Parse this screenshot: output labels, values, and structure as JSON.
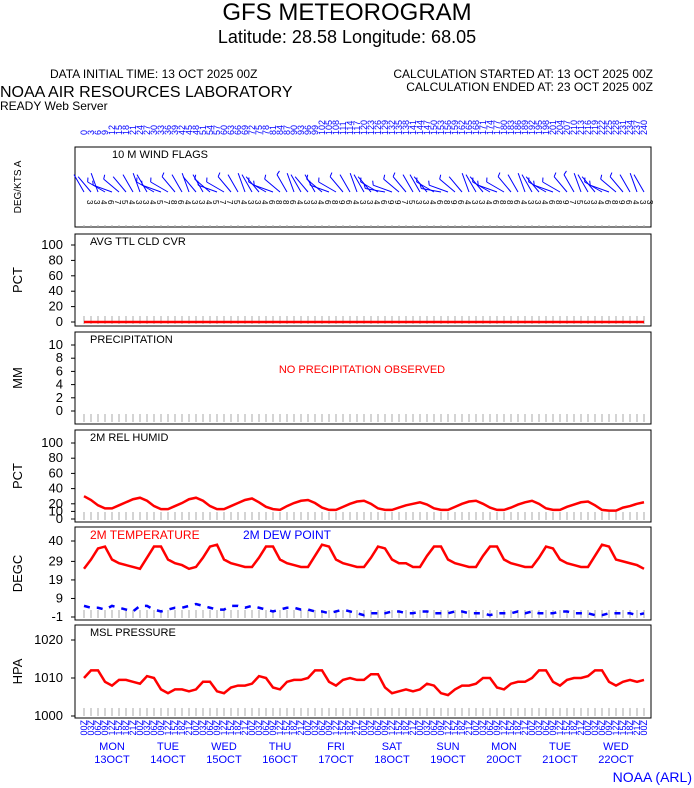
{
  "header": {
    "title": "GFS METEOROGRAM",
    "subtitle": "Latitude: 28.58 Longitude:  68.05",
    "initial_time": "DATA INITIAL TIME: 13 OCT 2025 00Z",
    "calc_started": "CALCULATION STARTED AT: 13 OCT 2025 00Z",
    "calc_ended": "CALCULATION ENDED AT: 23 OCT 2025 00Z",
    "lab": "NOAA AIR RESOURCES LABORATORY",
    "server": "READY Web Server",
    "footer": "NOAA (ARL)"
  },
  "chart_data": [
    {
      "type": "wind_barbs",
      "title": "10 M  WIND FLAGS",
      "ylabel": "DEG/KTS  A",
      "color": "#0000ff",
      "x": [
        0,
        3,
        6,
        9,
        12,
        15,
        18,
        21,
        24,
        27,
        30,
        33,
        36,
        39,
        42,
        45,
        48,
        51,
        54,
        57,
        60,
        63,
        66,
        69,
        72,
        75,
        78,
        81,
        84,
        87,
        90,
        93,
        96,
        99,
        102,
        105,
        108,
        111,
        114,
        117,
        120,
        123,
        126,
        129,
        132,
        135,
        138,
        141,
        144,
        147,
        150,
        153,
        156,
        159,
        162,
        165,
        168,
        171,
        174,
        177,
        180,
        183,
        186,
        189,
        192,
        195,
        198,
        201,
        204,
        207,
        210,
        213,
        216,
        219,
        222,
        225,
        228,
        231,
        234,
        237,
        240
      ],
      "directions": [
        330,
        320,
        340,
        300,
        290,
        310,
        320,
        330,
        340,
        330,
        300,
        290,
        300,
        320,
        330,
        340,
        320,
        330,
        310,
        290,
        300,
        320,
        330,
        340,
        330,
        320,
        300,
        290,
        310,
        330,
        340,
        330,
        320,
        330,
        310,
        290,
        300,
        320,
        330,
        340,
        330,
        320,
        300,
        280,
        290,
        310,
        320,
        330,
        330,
        320,
        300,
        280,
        290,
        310,
        320,
        340,
        330,
        320,
        300,
        290,
        300,
        320,
        330,
        340,
        330,
        320,
        300,
        290,
        300,
        320,
        330,
        340,
        330,
        320,
        300,
        290,
        310,
        320,
        330,
        340,
        330
      ],
      "speeds": [
        3,
        3,
        4,
        6,
        7,
        5,
        4,
        3,
        3,
        4,
        5,
        7,
        8,
        6,
        4,
        3,
        3,
        4,
        5,
        7,
        7,
        5,
        4,
        3,
        3,
        4,
        6,
        8,
        8,
        6,
        4,
        3,
        3,
        4,
        6,
        8,
        9,
        6,
        4,
        3,
        3,
        4,
        6,
        9,
        9,
        7,
        5,
        3,
        3,
        4,
        6,
        8,
        9,
        6,
        4,
        3,
        3,
        4,
        6,
        8,
        8,
        6,
        4,
        3,
        3,
        4,
        6,
        8,
        9,
        7,
        5,
        3,
        3,
        4,
        6,
        8,
        9,
        6,
        4,
        3,
        3
      ]
    },
    {
      "type": "line",
      "title": "AVG TTL CLD CVR",
      "ylabel": "PCT",
      "color": "#ff0000",
      "ylim": [
        0,
        100
      ],
      "yticks": [
        0,
        20,
        40,
        60,
        80,
        100
      ],
      "x": [
        0,
        3,
        6,
        9,
        12,
        15,
        18,
        21,
        24,
        27,
        30,
        33,
        36,
        39,
        42,
        45,
        48,
        51,
        54,
        57,
        60,
        63,
        66,
        69,
        72,
        75,
        78,
        81,
        84,
        87,
        90,
        93,
        96,
        99,
        102,
        105,
        108,
        111,
        114,
        117,
        120,
        123,
        126,
        129,
        132,
        135,
        138,
        141,
        144,
        147,
        150,
        153,
        156,
        159,
        162,
        165,
        168,
        171,
        174,
        177,
        180,
        183,
        186,
        189,
        192,
        195,
        198,
        201,
        204,
        207,
        210,
        213,
        216,
        219,
        222,
        225,
        228,
        231,
        234,
        237,
        240
      ],
      "values": [
        0,
        0,
        0,
        0,
        0,
        0,
        0,
        0,
        0,
        0,
        0,
        0,
        0,
        0,
        0,
        0,
        0,
        0,
        0,
        0,
        0,
        0,
        0,
        0,
        0,
        0,
        0,
        0,
        0,
        0,
        0,
        0,
        0,
        0,
        0,
        0,
        0,
        0,
        0,
        0,
        0,
        0,
        0,
        0,
        0,
        0,
        0,
        0,
        0,
        0,
        0,
        0,
        0,
        0,
        0,
        0,
        0,
        0,
        0,
        0,
        0,
        0,
        0,
        0,
        0,
        0,
        0,
        0,
        0,
        0,
        0,
        0,
        0,
        0,
        0,
        0,
        0,
        0,
        0,
        0,
        0
      ]
    },
    {
      "type": "line",
      "title": "PRECIPITATION",
      "ylabel": "MM",
      "ylim": [
        0,
        10
      ],
      "yticks": [
        0,
        2,
        4,
        6,
        8,
        10
      ],
      "annotation": "NO PRECIPITATION OBSERVED",
      "annotation_color": "#ff0000",
      "x": [
        0,
        3,
        6,
        9,
        12,
        15,
        18,
        21,
        24,
        27,
        30,
        33,
        36,
        39,
        42,
        45,
        48,
        51,
        54,
        57,
        60,
        63,
        66,
        69,
        72,
        75,
        78,
        81,
        84,
        87,
        90,
        93,
        96,
        99,
        102,
        105,
        108,
        111,
        114,
        117,
        120,
        123,
        126,
        129,
        132,
        135,
        138,
        141,
        144,
        147,
        150,
        153,
        156,
        159,
        162,
        165,
        168,
        171,
        174,
        177,
        180,
        183,
        186,
        189,
        192,
        195,
        198,
        201,
        204,
        207,
        210,
        213,
        216,
        219,
        222,
        225,
        228,
        231,
        234,
        237,
        240
      ]
    },
    {
      "type": "line",
      "title": "2M REL HUMID",
      "ylabel": "PCT",
      "color": "#ff0000",
      "ylim": [
        0,
        100
      ],
      "yticks": [
        0,
        10,
        20,
        40,
        60,
        80,
        100
      ],
      "x": [
        0,
        3,
        6,
        9,
        12,
        15,
        18,
        21,
        24,
        27,
        30,
        33,
        36,
        39,
        42,
        45,
        48,
        51,
        54,
        57,
        60,
        63,
        66,
        69,
        72,
        75,
        78,
        81,
        84,
        87,
        90,
        93,
        96,
        99,
        102,
        105,
        108,
        111,
        114,
        117,
        120,
        123,
        126,
        129,
        132,
        135,
        138,
        141,
        144,
        147,
        150,
        153,
        156,
        159,
        162,
        165,
        168,
        171,
        174,
        177,
        180,
        183,
        186,
        189,
        192,
        195,
        198,
        201,
        204,
        207,
        210,
        213,
        216,
        219,
        222,
        225,
        228,
        231,
        234,
        237,
        240
      ],
      "values": [
        30,
        25,
        18,
        14,
        14,
        18,
        22,
        26,
        28,
        24,
        17,
        13,
        13,
        17,
        21,
        26,
        28,
        24,
        17,
        13,
        13,
        17,
        21,
        25,
        27,
        22,
        16,
        13,
        12,
        17,
        21,
        24,
        25,
        21,
        15,
        12,
        12,
        16,
        20,
        23,
        24,
        20,
        14,
        12,
        12,
        15,
        18,
        20,
        22,
        19,
        14,
        12,
        12,
        16,
        20,
        23,
        24,
        20,
        15,
        12,
        12,
        15,
        19,
        22,
        24,
        20,
        14,
        12,
        12,
        16,
        19,
        22,
        23,
        18,
        12,
        11,
        11,
        15,
        17,
        20,
        22
      ]
    },
    {
      "type": "line",
      "ylabel": "DEGC",
      "ylim": [
        -1,
        40
      ],
      "yticks": [
        -1,
        9,
        19,
        29,
        40
      ],
      "x": [
        0,
        3,
        6,
        9,
        12,
        15,
        18,
        21,
        24,
        27,
        30,
        33,
        36,
        39,
        42,
        45,
        48,
        51,
        54,
        57,
        60,
        63,
        66,
        69,
        72,
        75,
        78,
        81,
        84,
        87,
        90,
        93,
        96,
        99,
        102,
        105,
        108,
        111,
        114,
        117,
        120,
        123,
        126,
        129,
        132,
        135,
        138,
        141,
        144,
        147,
        150,
        153,
        156,
        159,
        162,
        165,
        168,
        171,
        174,
        177,
        180,
        183,
        186,
        189,
        192,
        195,
        198,
        201,
        204,
        207,
        210,
        213,
        216,
        219,
        222,
        225,
        228,
        231,
        234,
        237,
        240
      ],
      "series": [
        {
          "name": "2M TEMPERATURE",
          "color": "#ff0000",
          "style": "solid",
          "values": [
            25,
            30,
            36,
            37,
            30,
            28,
            27,
            26,
            25,
            31,
            37,
            37,
            30,
            28,
            27,
            25,
            26,
            31,
            37,
            38,
            30,
            28,
            27,
            26,
            26,
            31,
            37,
            37,
            30,
            28,
            27,
            26,
            26,
            32,
            38,
            37,
            30,
            28,
            27,
            26,
            26,
            31,
            37,
            36,
            30,
            28,
            28,
            26,
            26,
            32,
            37,
            37,
            30,
            28,
            27,
            26,
            26,
            32,
            37,
            37,
            30,
            28,
            27,
            26,
            26,
            31,
            37,
            36,
            30,
            28,
            27,
            26,
            26,
            32,
            38,
            37,
            30,
            29,
            28,
            27,
            25
          ]
        },
        {
          "name": "2M   DEW POINT",
          "color": "#0000ff",
          "style": "dashed",
          "values": [
            5,
            4,
            4,
            3,
            5,
            4,
            3,
            2,
            5,
            5,
            3,
            2,
            3,
            4,
            4,
            5,
            6,
            5,
            4,
            3,
            3,
            5,
            5,
            4,
            5,
            4,
            3,
            2,
            3,
            4,
            4,
            3,
            3,
            2,
            2,
            1,
            2,
            3,
            2,
            1,
            0,
            1,
            1,
            1,
            2,
            2,
            1,
            1,
            2,
            2,
            1,
            1,
            1,
            2,
            2,
            1,
            1,
            1,
            0,
            1,
            1,
            1,
            2,
            1,
            2,
            1,
            1,
            1,
            2,
            2,
            1,
            1,
            1,
            0,
            0,
            1,
            1,
            1,
            1,
            0,
            1
          ]
        }
      ]
    },
    {
      "type": "line",
      "title": "MSL PRESSURE",
      "ylabel": "HPA",
      "color": "#ff0000",
      "ylim": [
        1000,
        1020
      ],
      "yticks": [
        1000,
        1010,
        1020
      ],
      "x": [
        0,
        3,
        6,
        9,
        12,
        15,
        18,
        21,
        24,
        27,
        30,
        33,
        36,
        39,
        42,
        45,
        48,
        51,
        54,
        57,
        60,
        63,
        66,
        69,
        72,
        75,
        78,
        81,
        84,
        87,
        90,
        93,
        96,
        99,
        102,
        105,
        108,
        111,
        114,
        117,
        120,
        123,
        126,
        129,
        132,
        135,
        138,
        141,
        144,
        147,
        150,
        153,
        156,
        159,
        162,
        165,
        168,
        171,
        174,
        177,
        180,
        183,
        186,
        189,
        192,
        195,
        198,
        201,
        204,
        207,
        210,
        213,
        216,
        219,
        222,
        225,
        228,
        231,
        234,
        237,
        240
      ],
      "values": [
        1010,
        1012,
        1012,
        1009,
        1008,
        1009.5,
        1009.5,
        1009,
        1008.5,
        1010.5,
        1010,
        1007,
        1006,
        1007,
        1007,
        1006.5,
        1007,
        1009,
        1009,
        1006.5,
        1006,
        1007.5,
        1008,
        1008,
        1008.5,
        1010.5,
        1010,
        1007.5,
        1007,
        1009,
        1009.5,
        1009.5,
        1010,
        1012,
        1012,
        1009,
        1008,
        1009.5,
        1010,
        1009.5,
        1009.5,
        1011,
        1011,
        1007.5,
        1006,
        1006.5,
        1007,
        1006.5,
        1007,
        1008.5,
        1008,
        1006,
        1005.5,
        1007,
        1008,
        1008,
        1008.5,
        1010,
        1010,
        1007.5,
        1007,
        1008.5,
        1009,
        1009,
        1010,
        1012,
        1012,
        1009,
        1008,
        1009.5,
        1010,
        1010,
        1010.5,
        1012,
        1012,
        1009,
        1008,
        1009,
        1009.5,
        1009,
        1009.5
      ],
      "x_labels": [
        "00Z",
        "03Z",
        "06Z",
        "09Z",
        "12Z",
        "15Z",
        "18Z",
        "21Z",
        "00Z",
        "03Z",
        "06Z",
        "09Z",
        "12Z",
        "15Z",
        "18Z",
        "21Z",
        "00Z",
        "03Z",
        "06Z",
        "09Z",
        "12Z",
        "15Z",
        "18Z",
        "21Z",
        "00Z",
        "03Z",
        "06Z",
        "09Z",
        "12Z",
        "15Z",
        "18Z",
        "21Z",
        "00Z",
        "03Z",
        "06Z",
        "09Z",
        "12Z",
        "15Z",
        "18Z",
        "21Z",
        "00Z",
        "03Z",
        "06Z",
        "09Z",
        "12Z",
        "15Z",
        "18Z",
        "21Z",
        "00Z",
        "03Z",
        "06Z",
        "09Z",
        "12Z",
        "15Z",
        "18Z",
        "21Z",
        "00Z",
        "03Z",
        "06Z",
        "09Z",
        "12Z",
        "15Z",
        "18Z",
        "21Z",
        "00Z",
        "03Z",
        "06Z",
        "09Z",
        "12Z",
        "15Z",
        "18Z",
        "21Z",
        "00Z",
        "03Z",
        "06Z",
        "09Z",
        "12Z",
        "15Z",
        "18Z",
        "21Z",
        "00Z"
      ],
      "day_x": [
        12,
        36,
        60,
        84,
        108,
        132,
        156,
        180,
        204,
        228
      ],
      "day_names": [
        "MON",
        "TUE",
        "WED",
        "THU",
        "FRI",
        "SAT",
        "SUN",
        "MON",
        "TUE",
        "WED"
      ],
      "day_dates": [
        "13OCT",
        "14OCT",
        "15OCT",
        "16OCT",
        "17OCT",
        "18OCT",
        "19OCT",
        "20OCT",
        "21OCT",
        "22OCT"
      ]
    }
  ]
}
